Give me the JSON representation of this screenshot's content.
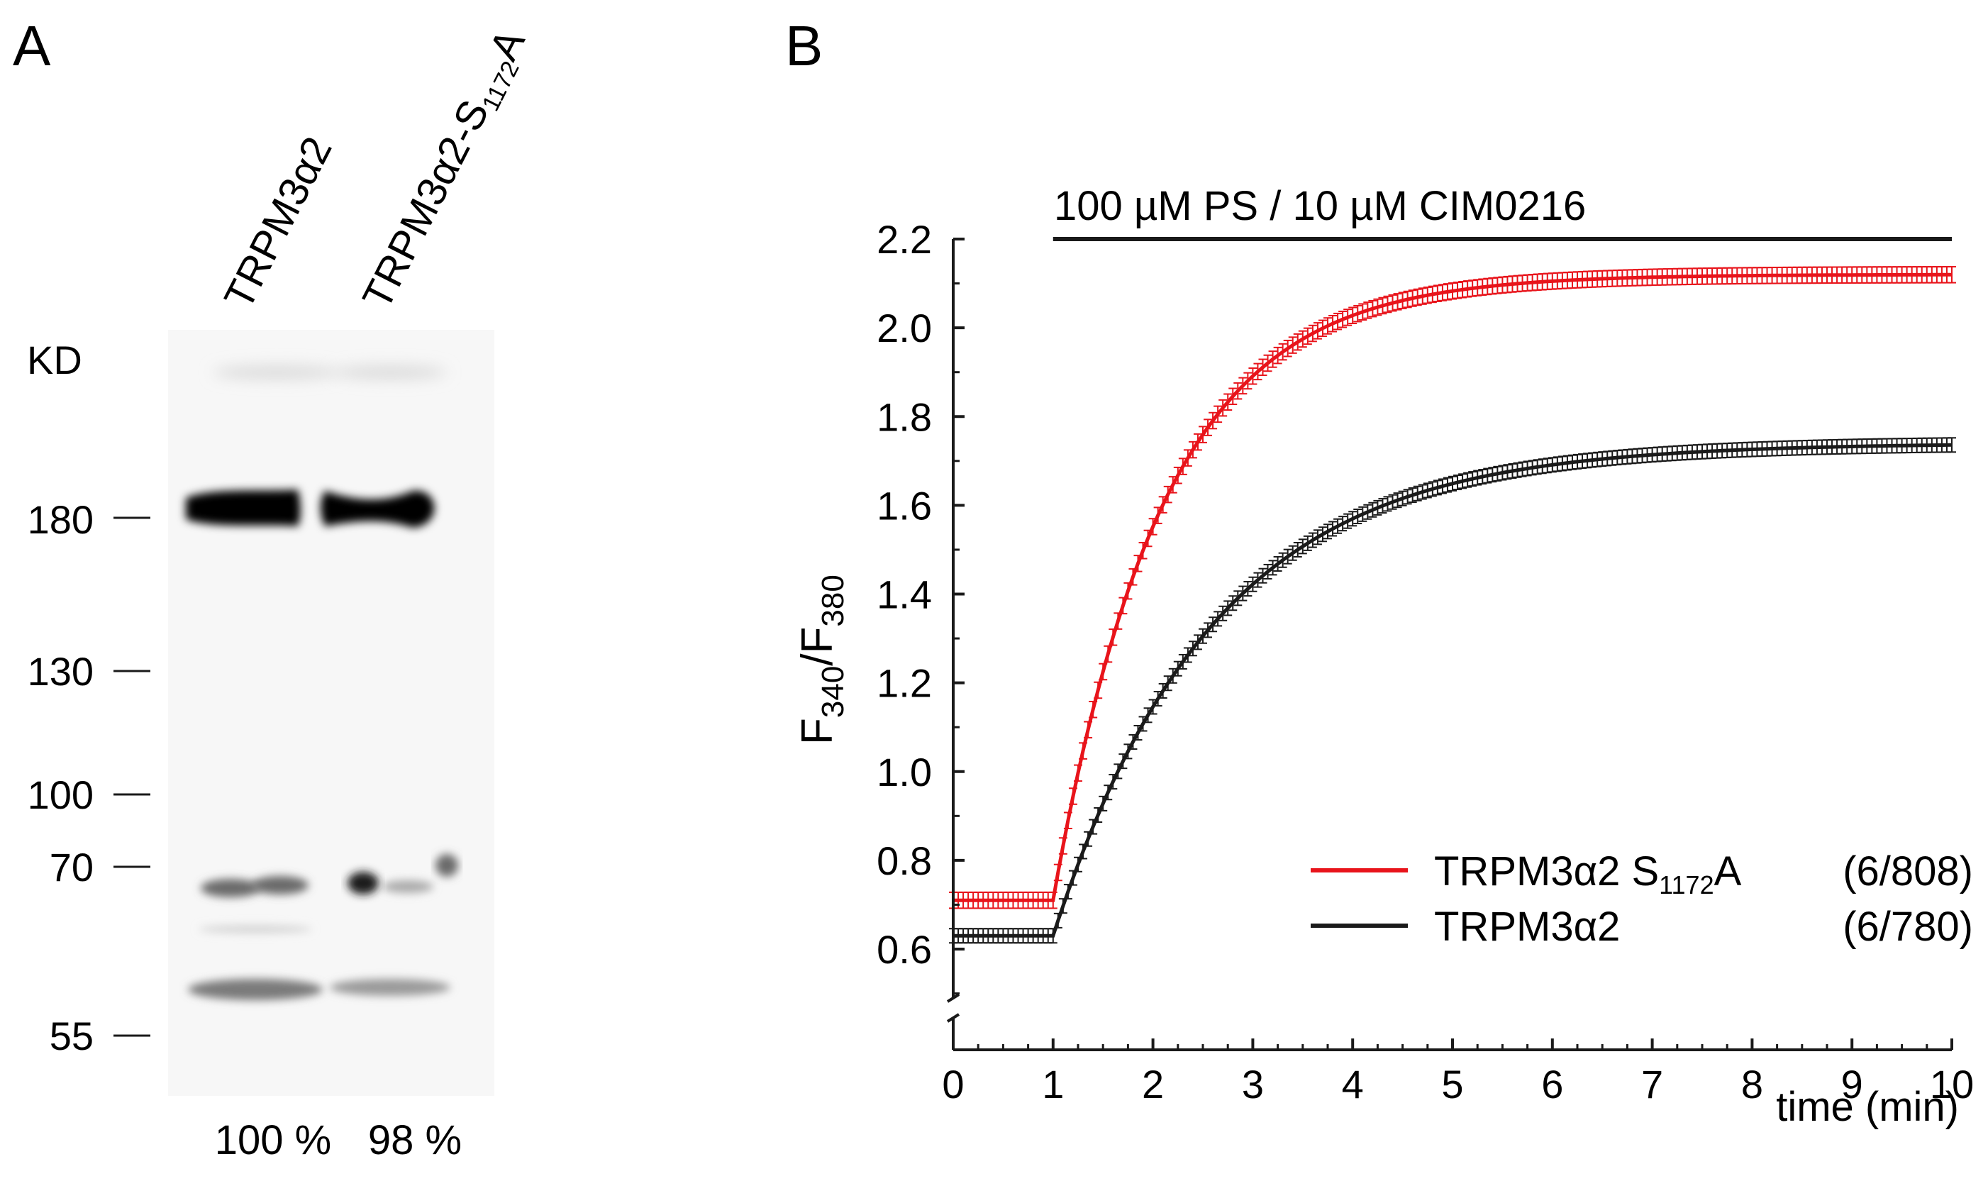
{
  "panels": {
    "a": {
      "label": "A",
      "lanes": [
        {
          "label_main": "TRPM3α2",
          "label_sub": "",
          "label_tail": "",
          "percent": "100 %"
        },
        {
          "label_main": "TRPM3α2-S",
          "label_sub": "1172",
          "label_tail": "A",
          "percent": "98 %"
        }
      ],
      "kd_label": "KD",
      "markers": [
        "180",
        "130",
        "100",
        "70",
        "55"
      ]
    },
    "b": {
      "label": "B",
      "treatment": {
        "text": "100 µM PS / 10 µM CIM0216",
        "start_min": 1,
        "end_min": 10
      }
    }
  },
  "chart_data": {
    "type": "line",
    "title": "",
    "xlabel": "time (min)",
    "ylabel": {
      "main": "F",
      "sub1": "340",
      "slash": "/F",
      "sub2": "380"
    },
    "xlim": [
      0,
      10
    ],
    "ylim": [
      0.5,
      2.2
    ],
    "axis_break": true,
    "x_ticks": [
      "0",
      "1",
      "2",
      "3",
      "4",
      "5",
      "6",
      "7",
      "8",
      "9",
      "10"
    ],
    "y_ticks": [
      "0.6",
      "0.8",
      "1.0",
      "1.2",
      "1.4",
      "1.6",
      "1.8",
      "2.0",
      "2.2"
    ],
    "legend_position": "bottom-right",
    "series": [
      {
        "name": "TRPM3α2 S1172A",
        "legend_main": "TRPM3α2 S",
        "legend_sub": "1172",
        "legend_tail": "A",
        "n": "(6/808)",
        "color": "#e8141b",
        "baseline": 0.71,
        "plateau": 2.12,
        "tau_min": 1.1,
        "error": 0.018
      },
      {
        "name": "TRPM3α2",
        "legend_main": "TRPM3α2",
        "legend_sub": "",
        "legend_tail": "",
        "n": "(6/780)",
        "color": "#1a1a1a",
        "baseline": 0.63,
        "plateau": 1.74,
        "tau_min": 1.6,
        "error": 0.016
      }
    ],
    "onset_min": 1.0,
    "sample_interval_min": 0.05
  }
}
